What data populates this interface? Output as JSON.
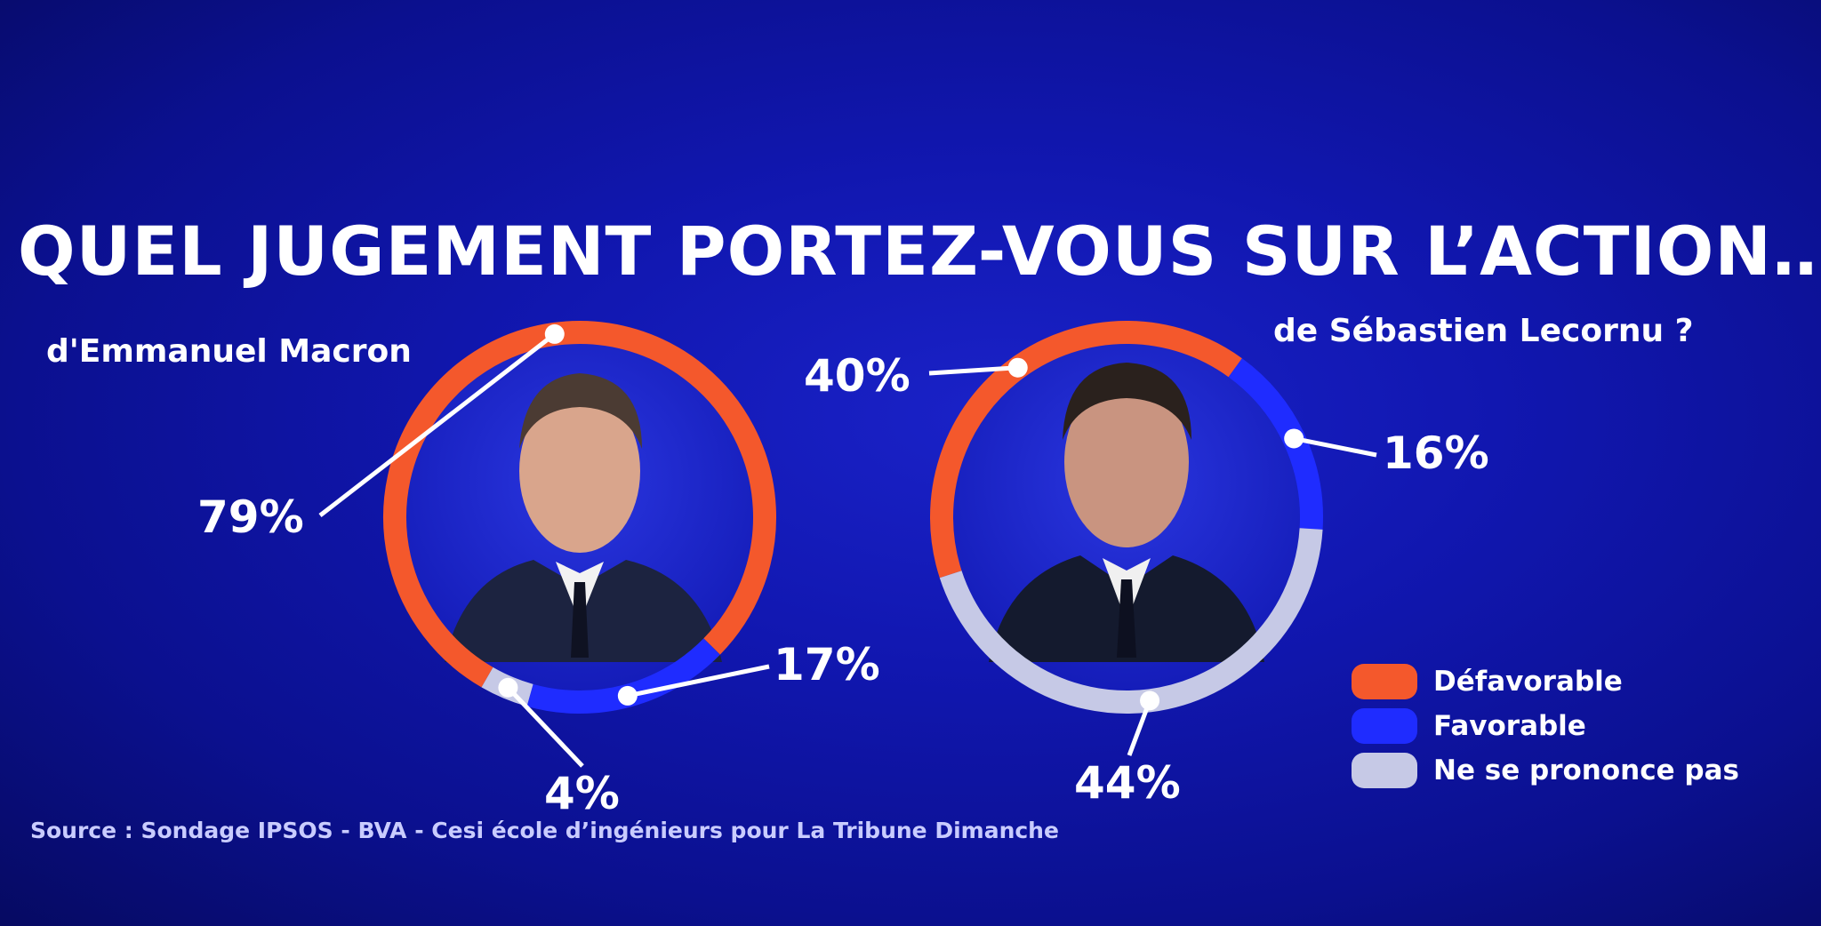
{
  "title": "QUEL JUGEMENT PORTEZ-VOUS SUR L’ACTION…",
  "source": "Source : Sondage IPSOS - BVA - Cesi école d’ingénieurs pour La Tribune Dimanche",
  "colors": {
    "defavorable": "#f4582c",
    "favorable": "#1f2cff",
    "ne_se_prononce_pas": "#c6c9e6"
  },
  "chart_data": [
    {
      "type": "pie",
      "subtitle": "d'Emmanuel Macron",
      "categories": [
        "Défavorable",
        "Favorable",
        "Ne se prononce pas"
      ],
      "values": [
        79,
        17,
        4
      ],
      "labels": [
        "79%",
        "17%",
        "4%"
      ]
    },
    {
      "type": "pie",
      "subtitle": "de Sébastien Lecornu ?",
      "categories": [
        "Défavorable",
        "Favorable",
        "Ne se prononce pas"
      ],
      "values": [
        40,
        16,
        44
      ],
      "labels": [
        "40%",
        "16%",
        "44%"
      ]
    }
  ],
  "legend": [
    {
      "label": "Défavorable",
      "color": "#f4582c"
    },
    {
      "label": "Favorable",
      "color": "#1f2cff"
    },
    {
      "label": "Ne se prononce pas",
      "color": "#c6c9e6"
    }
  ]
}
